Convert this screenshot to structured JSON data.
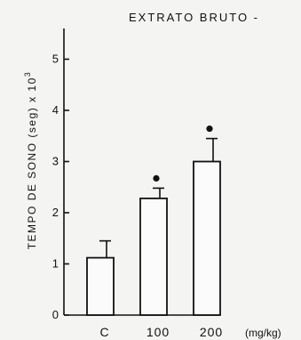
{
  "chart_data": {
    "type": "bar",
    "title": "EXTRATO BRUTO -",
    "ylabel_main": "TEMPO DE SONO (seg) x 10",
    "ylabel_exp": "3",
    "xlabel": "(mg/kg)",
    "categories": [
      "C",
      "100",
      "200"
    ],
    "values": [
      1.12,
      2.28,
      3.0
    ],
    "errors": [
      0.33,
      0.2,
      0.45
    ],
    "significant": [
      false,
      true,
      true
    ],
    "yticks": [
      "0",
      "1",
      "2",
      "3",
      "4",
      "5"
    ],
    "ylim": [
      0,
      5.6
    ],
    "grid": false
  }
}
